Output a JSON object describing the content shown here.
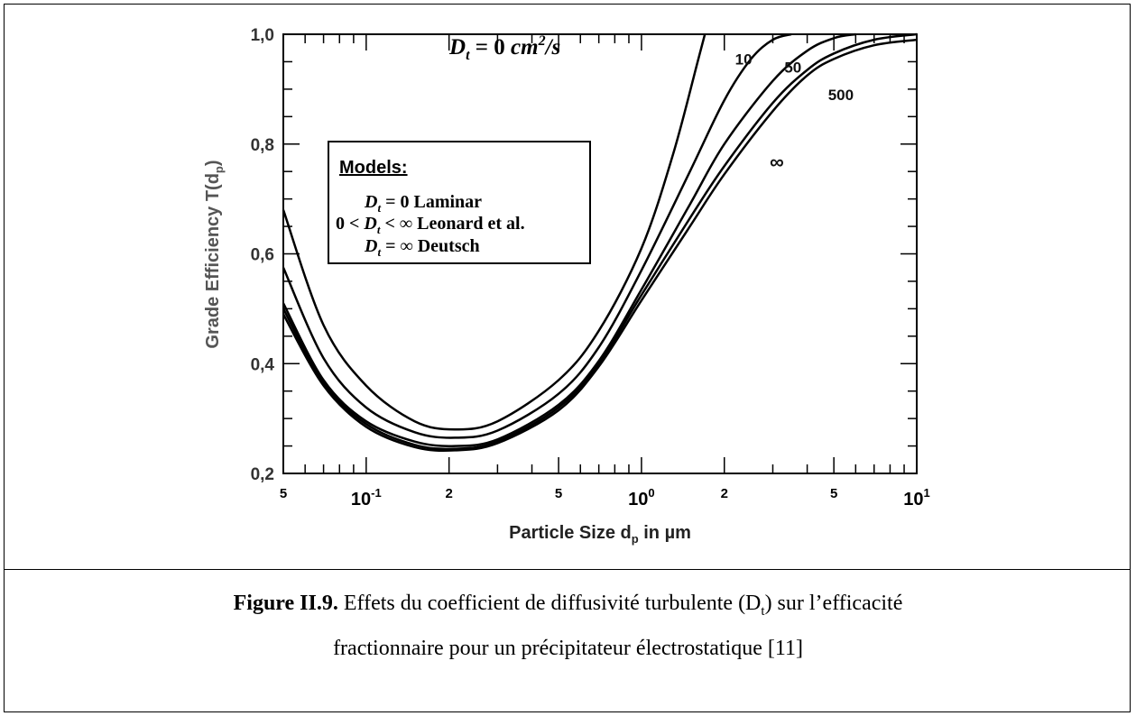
{
  "chart_data": {
    "type": "line",
    "xscale": "log",
    "xlim": [
      0.05,
      10
    ],
    "ylim": [
      0.2,
      1.0
    ],
    "xlabel": "Particle Size d",
    "xlabel_sub": "p",
    "xlabel_suffix": " in µm",
    "ylabel": "Grade Efficiency T(d",
    "ylabel_sub": "p",
    "ylabel_suffix": ")",
    "x_ticks": [
      {
        "value": 0.05,
        "label": "5"
      },
      {
        "value": 0.1,
        "label": "10",
        "sup": "-1"
      },
      {
        "value": 0.2,
        "label": "2"
      },
      {
        "value": 0.5,
        "label": "5"
      },
      {
        "value": 1,
        "label": "10",
        "sup": "0"
      },
      {
        "value": 2,
        "label": "2"
      },
      {
        "value": 5,
        "label": "5"
      },
      {
        "value": 10,
        "label": "10",
        "sup": "1"
      }
    ],
    "y_ticks": [
      {
        "value": 0.2,
        "label": "0,2"
      },
      {
        "value": 0.4,
        "label": "0,4"
      },
      {
        "value": 0.6,
        "label": "0,6"
      },
      {
        "value": 0.8,
        "label": "0,8"
      },
      {
        "value": 1.0,
        "label": "1,0"
      }
    ],
    "series": [
      {
        "name": "0",
        "x": [
          0.05,
          0.07,
          0.1,
          0.15,
          0.21,
          0.3,
          0.5,
          0.7,
          1.0,
          1.3,
          1.6,
          1.7
        ],
        "y": [
          0.68,
          0.47,
          0.36,
          0.295,
          0.28,
          0.295,
          0.37,
          0.46,
          0.61,
          0.78,
          0.95,
          1.0
        ]
      },
      {
        "name": "10",
        "x": [
          0.05,
          0.07,
          0.1,
          0.15,
          0.21,
          0.3,
          0.5,
          0.7,
          1.0,
          1.5,
          2.0,
          2.5,
          3.0,
          3.5
        ],
        "y": [
          0.575,
          0.41,
          0.32,
          0.275,
          0.265,
          0.278,
          0.345,
          0.43,
          0.57,
          0.75,
          0.88,
          0.955,
          0.99,
          1.0
        ]
      },
      {
        "name": "50",
        "x": [
          0.05,
          0.07,
          0.1,
          0.15,
          0.21,
          0.3,
          0.5,
          0.7,
          1.0,
          1.5,
          2.0,
          3.0,
          4.0,
          5.0,
          6.0
        ],
        "y": [
          0.51,
          0.37,
          0.295,
          0.258,
          0.25,
          0.262,
          0.325,
          0.405,
          0.535,
          0.69,
          0.8,
          0.915,
          0.97,
          0.993,
          1.0
        ]
      },
      {
        "name": "500",
        "x": [
          0.05,
          0.07,
          0.1,
          0.15,
          0.21,
          0.3,
          0.5,
          0.7,
          1.0,
          1.5,
          2.0,
          3.0,
          4.0,
          5.0,
          7.0,
          10.0
        ],
        "y": [
          0.5,
          0.365,
          0.29,
          0.252,
          0.245,
          0.258,
          0.32,
          0.4,
          0.525,
          0.665,
          0.76,
          0.875,
          0.935,
          0.965,
          0.99,
          1.0
        ]
      },
      {
        "name": "∞",
        "x": [
          0.05,
          0.07,
          0.1,
          0.15,
          0.21,
          0.3,
          0.5,
          0.7,
          1.0,
          1.5,
          2.0,
          3.0,
          4.0,
          5.0,
          7.0,
          10.0
        ],
        "y": [
          0.49,
          0.36,
          0.285,
          0.248,
          0.242,
          0.255,
          0.315,
          0.395,
          0.515,
          0.65,
          0.745,
          0.86,
          0.925,
          0.955,
          0.98,
          0.99
        ]
      }
    ],
    "curve_labels": [
      {
        "text": "10",
        "x": 2.35,
        "y": 0.945
      },
      {
        "text": "50",
        "x": 3.55,
        "y": 0.93
      },
      {
        "text": "500",
        "x": 5.3,
        "y": 0.88
      },
      {
        "text": "∞",
        "x": 3.1,
        "y": 0.755
      }
    ],
    "top_label": {
      "main": "D",
      "sub": "t",
      "eq": " = 0 ",
      "unit": "cm",
      "sup": "2",
      "tail": "/s"
    },
    "legend": {
      "title": "Models:",
      "lines": [
        {
          "pre": "",
          "sym": "D",
          "sub": "t",
          "post": " = 0  Laminar"
        },
        {
          "pre": "0 < ",
          "sym": "D",
          "sub": "t",
          "post": " < ∞ Leonard et al."
        },
        {
          "pre": "",
          "sym": "D",
          "sub": "t",
          "post": " = ∞ Deutsch"
        }
      ]
    }
  },
  "caption": {
    "bold": "Figure II.9.",
    "line1_a": " Effets du coefficient de diffusivité turbulente (D",
    "line1_sub": "t",
    "line1_b": ") sur l’efficacité",
    "line2": "fractionnaire pour un précipitateur électrostatique [11]"
  }
}
